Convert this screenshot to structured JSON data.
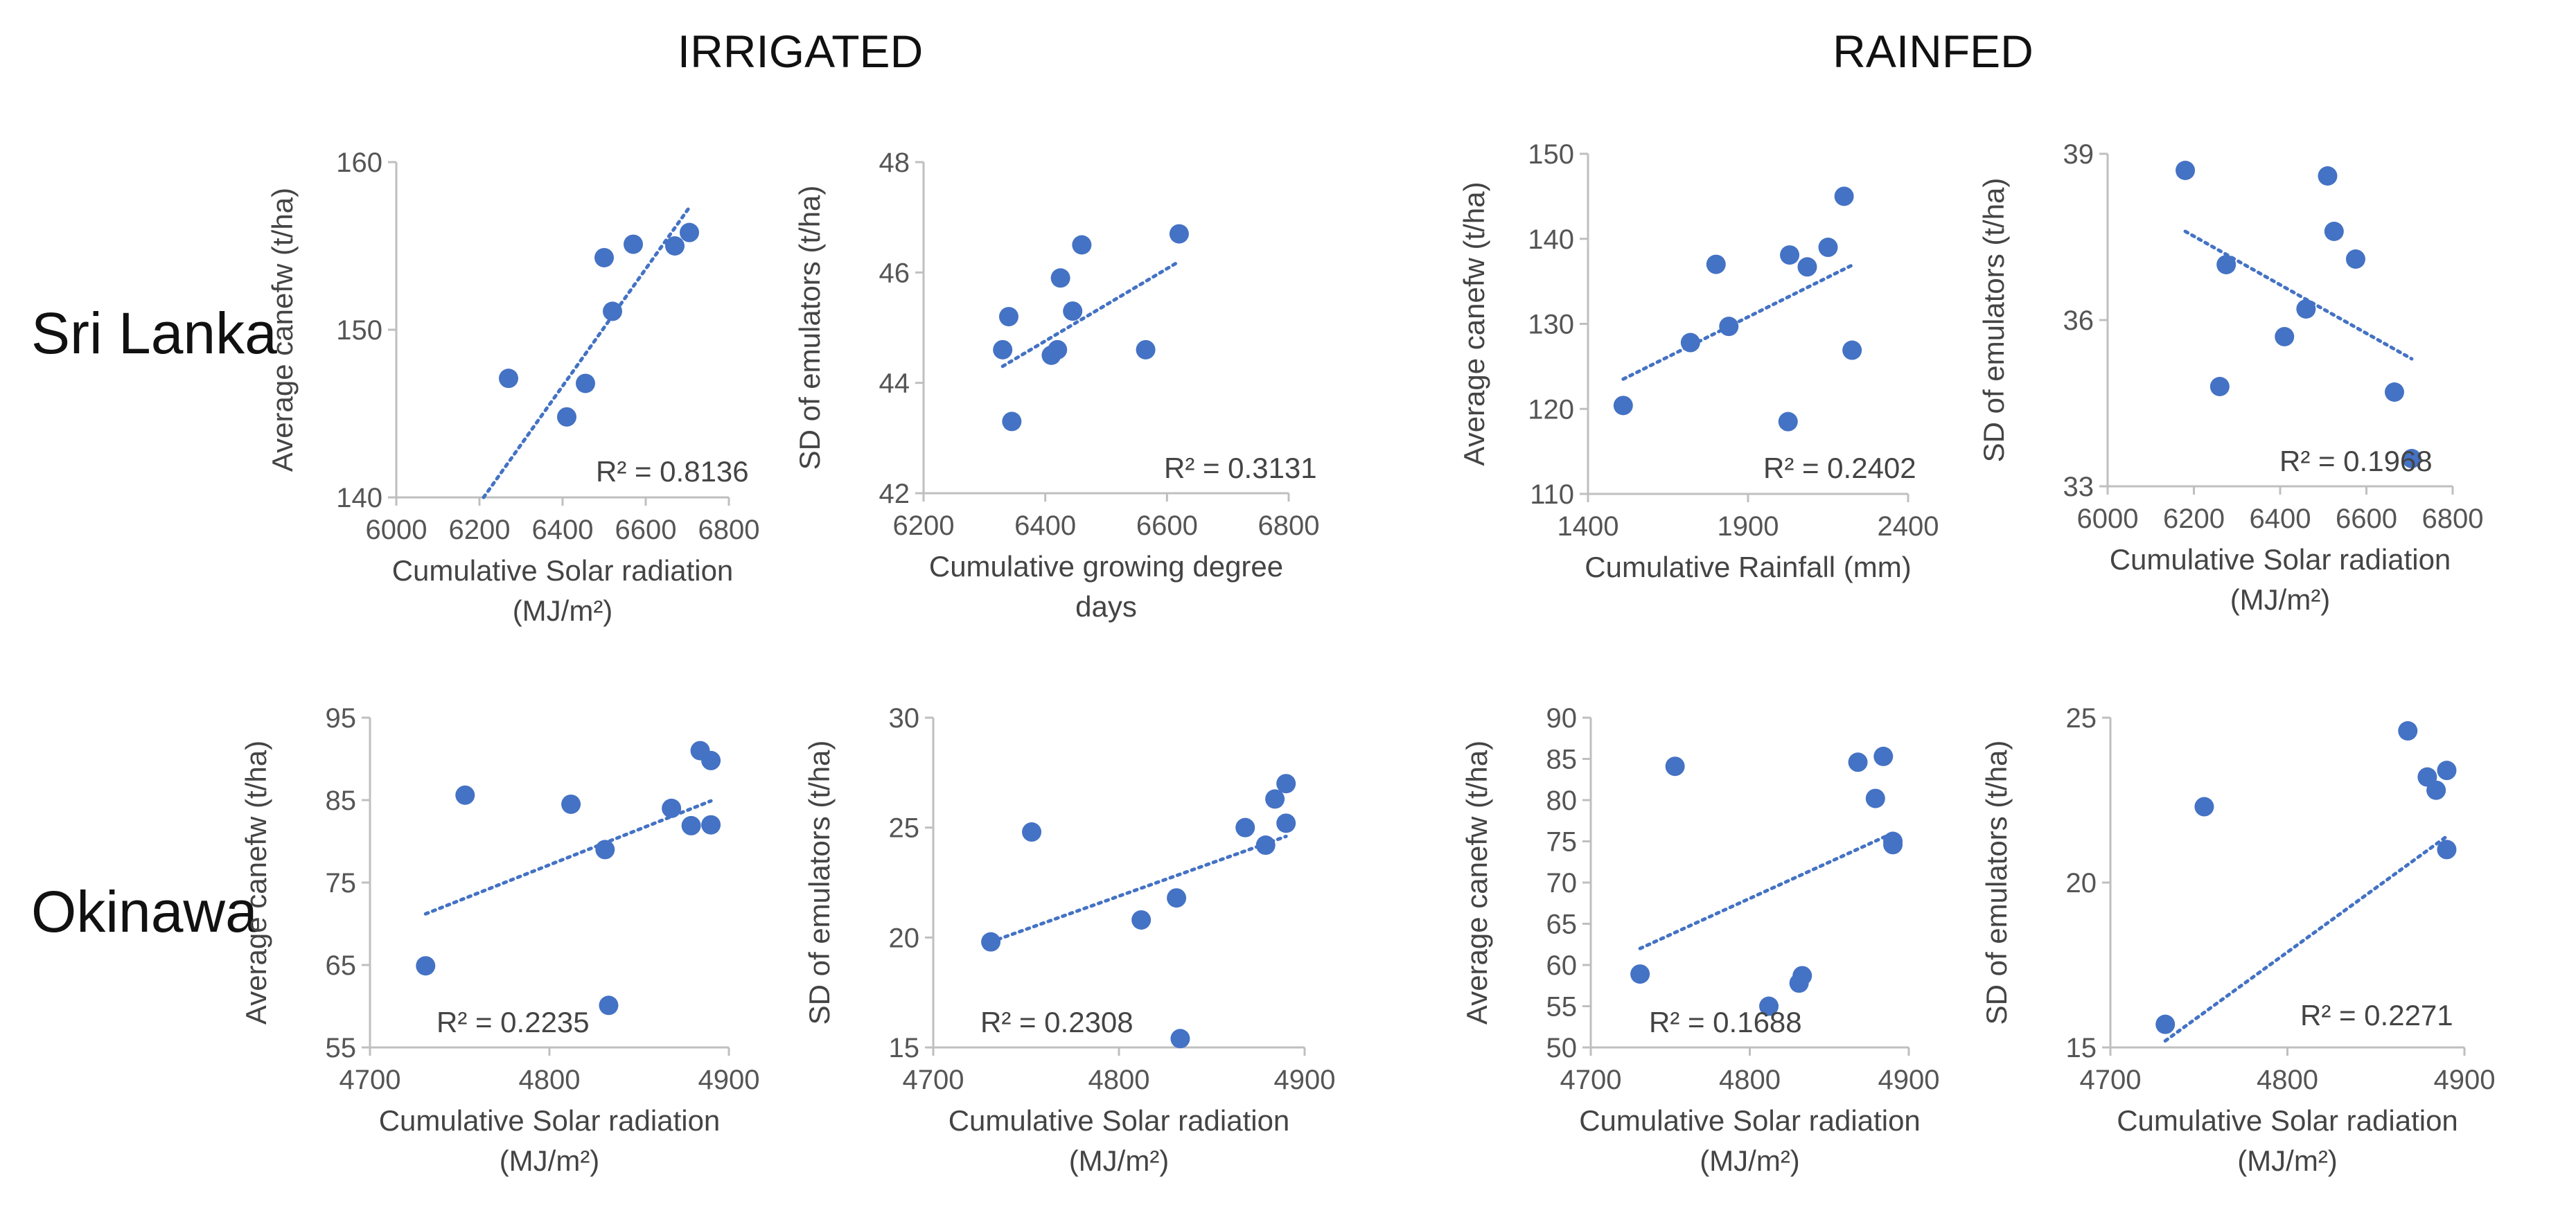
{
  "headers": {
    "irrigated": "IRRIGATED",
    "rainfed": "RAINFED"
  },
  "rows": {
    "sri_lanka": "Sri Lanka",
    "okinawa": "Okinawa"
  },
  "colors": {
    "points": "#4472C4",
    "trend": "#4472C4",
    "axis": "#BFBFBF"
  },
  "chart_data": [
    {
      "type": "scatter",
      "group": "IRRIGATED",
      "row": "Sri Lanka",
      "xlabel": [
        "Cumulative Solar radiation",
        "(MJ/m²)"
      ],
      "ylabel": "Average canefw (t/ha)",
      "xlim": [
        6000,
        6800
      ],
      "xticks": [
        6000,
        6200,
        6400,
        6600,
        6800
      ],
      "ylim": [
        140,
        160
      ],
      "yticks": [
        140,
        150,
        160
      ],
      "x": [
        6270,
        6410,
        6455,
        6500,
        6520,
        6570,
        6670,
        6705
      ],
      "y": [
        147.1,
        144.8,
        146.8,
        154.3,
        151.1,
        155.1,
        155.0,
        155.8
      ],
      "trend": {
        "x": [
          6210,
          6705
        ],
        "y": [
          140.0,
          157.3
        ]
      },
      "r2_label": "R² = 0.8136"
    },
    {
      "type": "scatter",
      "group": "IRRIGATED",
      "row": "Sri Lanka",
      "xlabel": [
        "Cumulative growing degree",
        "days"
      ],
      "ylabel": "SD of emulators (t/ha)",
      "xlim": [
        6200,
        6800
      ],
      "xticks": [
        6200,
        6400,
        6600,
        6800
      ],
      "ylim": [
        42,
        48
      ],
      "yticks": [
        42,
        44,
        46,
        48
      ],
      "x": [
        6330,
        6340,
        6345,
        6410,
        6420,
        6425,
        6445,
        6460,
        6565,
        6620
      ],
      "y": [
        44.6,
        45.2,
        43.3,
        44.5,
        44.6,
        45.9,
        45.3,
        46.5,
        44.6,
        46.7
      ],
      "trend": {
        "x": [
          6330,
          6620
        ],
        "y": [
          44.3,
          46.2
        ]
      },
      "r2_label": "R² = 0.3131"
    },
    {
      "type": "scatter",
      "group": "RAINFED",
      "row": "Sri Lanka",
      "xlabel": [
        "Cumulative Rainfall (mm)"
      ],
      "ylabel": "Average canefw (t/ha)",
      "xlim": [
        1400,
        2400
      ],
      "xticks": [
        1400,
        1900,
        2400
      ],
      "ylim": [
        110,
        150
      ],
      "yticks": [
        110,
        120,
        130,
        140,
        150
      ],
      "x": [
        1510,
        1720,
        1800,
        1840,
        2025,
        2030,
        2085,
        2150,
        2200,
        2225
      ],
      "y": [
        120.4,
        127.8,
        137.0,
        129.7,
        118.5,
        138.1,
        136.7,
        139.0,
        145.0,
        126.9
      ],
      "trend": {
        "x": [
          1510,
          2225
        ],
        "y": [
          123.5,
          136.9
        ]
      },
      "r2_label": "R² = 0.2402"
    },
    {
      "type": "scatter",
      "group": "RAINFED",
      "row": "Sri Lanka",
      "xlabel": [
        "Cumulative Solar radiation",
        "(MJ/m²)"
      ],
      "ylabel": "SD of emulators (t/ha)",
      "xlim": [
        6000,
        6800
      ],
      "xticks": [
        6000,
        6200,
        6400,
        6600,
        6800
      ],
      "ylim": [
        33,
        39
      ],
      "yticks": [
        33,
        36,
        39
      ],
      "x": [
        6180,
        6260,
        6275,
        6410,
        6460,
        6510,
        6525,
        6575,
        6665,
        6705
      ],
      "y": [
        38.7,
        34.8,
        37.0,
        35.7,
        36.2,
        38.6,
        37.6,
        37.1,
        34.7,
        33.5
      ],
      "trend": {
        "x": [
          6180,
          6705
        ],
        "y": [
          37.6,
          35.3
        ]
      },
      "r2_label": "R² = 0.1968"
    },
    {
      "type": "scatter",
      "group": "IRRIGATED",
      "row": "Okinawa",
      "xlabel": [
        "Cumulative Solar radiation",
        "(MJ/m²)"
      ],
      "ylabel": "Average canefw (t/ha)",
      "xlim": [
        4700,
        4900
      ],
      "xticks": [
        4700,
        4800,
        4900
      ],
      "ylim": [
        55,
        95
      ],
      "yticks": [
        55,
        65,
        75,
        85,
        95
      ],
      "x": [
        4731,
        4753,
        4812,
        4831,
        4833,
        4868,
        4879,
        4884,
        4890,
        4890
      ],
      "y": [
        64.9,
        85.6,
        84.5,
        79.0,
        60.1,
        84.0,
        81.9,
        91.0,
        82.0,
        89.8
      ],
      "trend": {
        "x": [
          4731,
          4890
        ],
        "y": [
          71.2,
          84.9
        ]
      },
      "r2_label": "R² = 0.2235"
    },
    {
      "type": "scatter",
      "group": "IRRIGATED",
      "row": "Okinawa",
      "xlabel": [
        "Cumulative Solar radiation",
        "(MJ/m²)"
      ],
      "ylabel": "SD of emulators (t/ha)",
      "xlim": [
        4700,
        4900
      ],
      "xticks": [
        4700,
        4800,
        4900
      ],
      "ylim": [
        15,
        30
      ],
      "yticks": [
        15,
        20,
        25,
        30
      ],
      "x": [
        4731,
        4753,
        4812,
        4831,
        4833,
        4868,
        4879,
        4884,
        4890,
        4890
      ],
      "y": [
        19.8,
        24.8,
        20.8,
        21.8,
        15.4,
        25.0,
        24.2,
        26.3,
        25.2,
        27.0
      ],
      "trend": {
        "x": [
          4731,
          4890
        ],
        "y": [
          19.8,
          24.6
        ]
      },
      "r2_label": "R² = 0.2308"
    },
    {
      "type": "scatter",
      "group": "RAINFED",
      "row": "Okinawa",
      "xlabel": [
        "Cumulative Solar radiation",
        "(MJ/m²)"
      ],
      "ylabel": "Average canefw (t/ha)",
      "xlim": [
        4700,
        4900
      ],
      "xticks": [
        4700,
        4800,
        4900
      ],
      "ylim": [
        50,
        90
      ],
      "yticks": [
        50,
        55,
        60,
        65,
        70,
        75,
        80,
        85,
        90
      ],
      "x": [
        4731,
        4753,
        4812,
        4831,
        4833,
        4868,
        4879,
        4884,
        4890,
        4890
      ],
      "y": [
        58.9,
        84.1,
        55.0,
        57.8,
        58.7,
        84.6,
        80.2,
        85.3,
        74.6,
        75.0
      ],
      "trend": {
        "x": [
          4731,
          4890
        ],
        "y": [
          62.0,
          76.0
        ]
      },
      "r2_label": "R² = 0.1688"
    },
    {
      "type": "scatter",
      "group": "RAINFED",
      "row": "Okinawa",
      "xlabel": [
        "Cumulative Solar radiation",
        "(MJ/m²)"
      ],
      "ylabel": "SD of emulators (t/ha)",
      "xlim": [
        4700,
        4900
      ],
      "xticks": [
        4700,
        4800,
        4900
      ],
      "ylim": [
        15,
        25
      ],
      "yticks": [
        15,
        20,
        25
      ],
      "x": [
        4731,
        4753,
        4868,
        4879,
        4884,
        4890,
        4890
      ],
      "y": [
        15.7,
        22.3,
        24.6,
        23.2,
        22.8,
        23.4,
        21.0
      ],
      "trend": {
        "x": [
          4731,
          4890
        ],
        "y": [
          15.2,
          21.4
        ]
      },
      "r2_label": "R² = 0.2271"
    }
  ]
}
